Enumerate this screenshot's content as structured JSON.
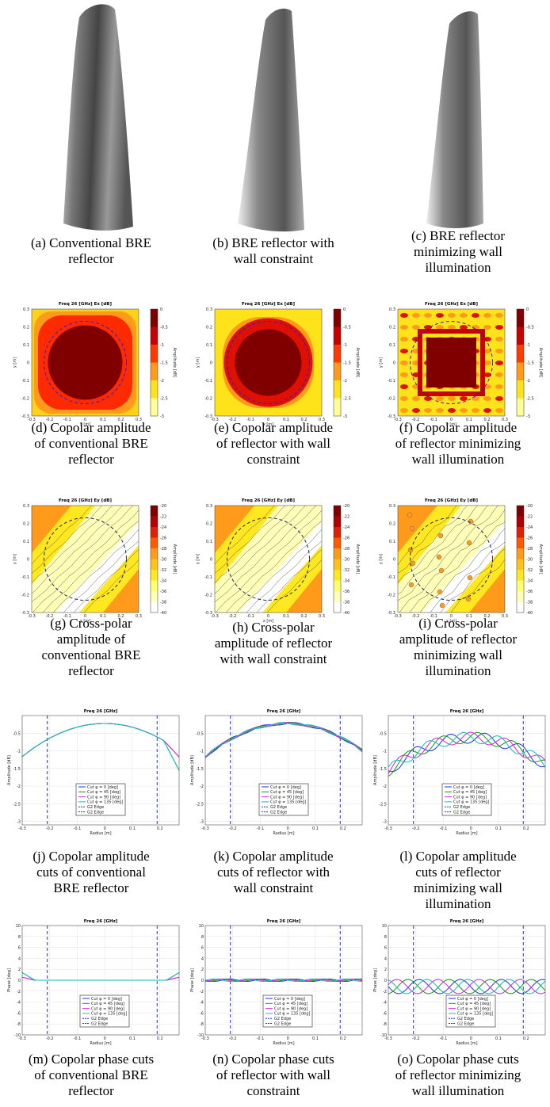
{
  "captions": [
    [
      "(a) Conventional BRE",
      "reflector"
    ],
    [
      "(b) BRE reflector with",
      "wall constraint"
    ],
    [
      "(c) BRE reflector",
      "minimizing wall",
      "illumination"
    ],
    [
      "(d) Copolar amplitude",
      "of conventional BRE",
      "reflector"
    ],
    [
      "(e) Copolar amplitude",
      "of reflector with wall",
      "constraint"
    ],
    [
      "(f) Copolar amplitude",
      "of reflector minimizing",
      "wall illumination"
    ],
    [
      "(g) Cross-polar",
      "amplitude of",
      "conventional BRE",
      "reflector"
    ],
    [
      "(h) Cross-polar",
      "amplitude of reflector",
      "with wall constraint"
    ],
    [
      "(i) Cross-polar",
      "amplitude of reflector",
      "minimizing wall",
      "illumination"
    ],
    [
      "(j) Copolar amplitude",
      "cuts of conventional",
      "BRE reflector"
    ],
    [
      "(k) Copolar amplitude",
      "cuts of reflector with",
      "wall constraint"
    ],
    [
      "(l) Copolar amplitude",
      "cuts of reflector",
      "minimizing wall",
      "illumination"
    ],
    [
      "(m) Copolar phase cuts",
      "of conventional BRE",
      "reflector"
    ],
    [
      "(n) Copolar phase cuts",
      "of reflector with wall",
      "constraint"
    ],
    [
      "(o) Copolar phase cuts",
      "of reflector minimizing",
      "wall illumination"
    ]
  ],
  "copolar_map": {
    "title": "Freq 26 [GHz] Ex [dB]",
    "xlabel": "x [m]",
    "ylabel": "y [m]",
    "colorbar_label": "Amplitude [dB]",
    "colorbar_ticks": [
      "0",
      "-0.5",
      "-1",
      "-1.5",
      "-2",
      "-2.5",
      "-3"
    ],
    "axis_ticks": [
      "-0.3",
      "-0.2",
      "-0.1",
      "0",
      "0.1",
      "0.2",
      "0.3"
    ]
  },
  "crosspolar_map": {
    "title": "Freq 26 [GHz] Ey [dB]",
    "xlabel": "x [m]",
    "ylabel": "y [m]",
    "colorbar_label": "Amplitude [dB]",
    "colorbar_ticks": [
      "-20",
      "-22",
      "-24",
      "-26",
      "-28",
      "-30",
      "-32",
      "-34",
      "-36",
      "-38",
      "-40"
    ],
    "axis_ticks": [
      "-0.3",
      "-0.2",
      "-0.1",
      "0",
      "0.1",
      "0.2",
      "0.3"
    ]
  },
  "amplitude_cuts": {
    "title": "Freq 26 [GHz]",
    "xlabel": "Radius [m]",
    "ylabel": "Amplitude [dB]",
    "yticks": [
      "-0.5",
      "-1",
      "-1.5",
      "-2",
      "-2.5",
      "-3"
    ],
    "xticks": [
      "-0.3",
      "-0.2",
      "-0.1",
      "0",
      "0.1",
      "0.2"
    ],
    "legend": [
      "Cut φ = 0 [deg]",
      "Cut φ = 45 [deg]",
      "Cut φ = 90 [deg]",
      "Cut φ = 135 [deg]",
      "G2 Edge",
      "G2 Edge"
    ]
  },
  "phase_cuts": {
    "title": "Freq 26 [GHz]",
    "xlabel": "Radius [m]",
    "ylabel": "Phase [deg]",
    "yticks": [
      "10",
      "8",
      "6",
      "4",
      "2",
      "0",
      "-2",
      "-4",
      "-6",
      "-8",
      "-10"
    ],
    "xticks": [
      "-0.3",
      "-0.2",
      "-0.1",
      "0",
      "0.1",
      "0.2"
    ],
    "legend": [
      "Cut φ = 0 [deg]",
      "Cut φ = 45 [deg]",
      "Cut φ = 90 [deg]",
      "Cut φ = 135 [deg]",
      "G2 Edge",
      "G2 Edge"
    ]
  }
}
